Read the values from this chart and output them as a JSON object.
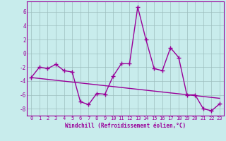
{
  "x": [
    0,
    1,
    2,
    3,
    4,
    5,
    6,
    7,
    8,
    9,
    10,
    11,
    12,
    13,
    14,
    15,
    16,
    17,
    18,
    19,
    20,
    21,
    22,
    23
  ],
  "y": [
    -3.5,
    -2.0,
    -2.2,
    -1.6,
    -2.5,
    -2.7,
    -7.0,
    -7.4,
    -5.8,
    -5.9,
    -3.3,
    -1.5,
    -1.5,
    6.7,
    2.0,
    -2.2,
    -2.5,
    0.8,
    -0.6,
    -6.0,
    -6.0,
    -8.0,
    -8.3,
    -7.3
  ],
  "trend_x": [
    0,
    23
  ],
  "trend_y": [
    -3.5,
    -6.5
  ],
  "line_color": "#990099",
  "bg_color": "#c8ecec",
  "grid_color": "#9dbfbf",
  "xlabel": "Windchill (Refroidissement éolien,°C)",
  "ylim": [
    -9,
    7.5
  ],
  "xlim": [
    -0.5,
    23.5
  ],
  "yticks": [
    -8,
    -6,
    -4,
    -2,
    0,
    2,
    4,
    6
  ],
  "xticks": [
    0,
    1,
    2,
    3,
    4,
    5,
    6,
    7,
    8,
    9,
    10,
    11,
    12,
    13,
    14,
    15,
    16,
    17,
    18,
    19,
    20,
    21,
    22,
    23
  ],
  "marker": "+",
  "markersize": 4,
  "linewidth": 1.0
}
